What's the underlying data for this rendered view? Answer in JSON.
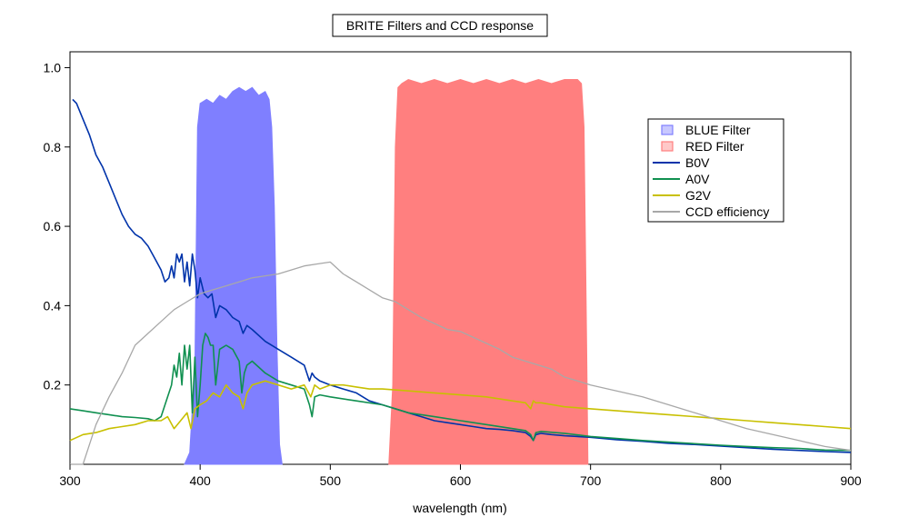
{
  "chart_data": {
    "type": "line",
    "title": "BRITE Filters and CCD response",
    "xlabel": "wavelength (nm)",
    "ylabel": "",
    "xlim": [
      300,
      900
    ],
    "ylim": [
      0.0,
      1.04
    ],
    "x_ticks": [
      300,
      400,
      500,
      600,
      700,
      800,
      900
    ],
    "y_ticks": [
      0.2,
      0.4,
      0.6,
      0.8,
      1.0
    ],
    "x_tick_labels": [
      "300",
      "400",
      "500",
      "600",
      "700",
      "800",
      "900"
    ],
    "y_tick_labels": [
      "0.2",
      "0.4",
      "0.6",
      "0.8",
      "1.0"
    ],
    "legend_position": "top-right",
    "grid": false,
    "legend": [
      {
        "label": "BLUE Filter",
        "kind": "box",
        "color": "#7f7fff"
      },
      {
        "label": "RED Filter",
        "kind": "box",
        "color": "#ff7f7f"
      },
      {
        "label": "B0V",
        "kind": "line",
        "color": "#0033aa"
      },
      {
        "label": "A0V",
        "kind": "line",
        "color": "#109050"
      },
      {
        "label": "G2V",
        "kind": "line",
        "color": "#c8c000"
      },
      {
        "label": "CCD efficiency",
        "kind": "line",
        "color": "#a8a8a8"
      }
    ],
    "filters": [
      {
        "name": "BLUE Filter",
        "color": "#7f7fff",
        "x": [
          388,
          392,
          396,
          398,
          400,
          405,
          410,
          415,
          420,
          425,
          430,
          435,
          440,
          445,
          450,
          453,
          455,
          457,
          459,
          461,
          463
        ],
        "y": [
          0.0,
          0.03,
          0.25,
          0.85,
          0.91,
          0.92,
          0.91,
          0.93,
          0.92,
          0.94,
          0.95,
          0.94,
          0.95,
          0.93,
          0.94,
          0.92,
          0.85,
          0.65,
          0.3,
          0.05,
          0.0
        ]
      },
      {
        "name": "RED Filter",
        "color": "#ff7f7f",
        "x": [
          545,
          548,
          550,
          552,
          555,
          560,
          570,
          580,
          590,
          600,
          610,
          620,
          630,
          640,
          650,
          660,
          670,
          680,
          690,
          693,
          695,
          697,
          698
        ],
        "y": [
          0.0,
          0.2,
          0.8,
          0.95,
          0.96,
          0.97,
          0.96,
          0.97,
          0.96,
          0.97,
          0.96,
          0.97,
          0.96,
          0.97,
          0.96,
          0.97,
          0.96,
          0.97,
          0.97,
          0.96,
          0.85,
          0.3,
          0.0
        ]
      }
    ],
    "series": [
      {
        "name": "B0V",
        "color": "#0033aa",
        "x": [
          302,
          305,
          310,
          315,
          320,
          325,
          330,
          335,
          340,
          345,
          350,
          355,
          360,
          365,
          370,
          373,
          376,
          378,
          380,
          382,
          384,
          386,
          388,
          390,
          392,
          394,
          396,
          398,
          400,
          403,
          406,
          409,
          412,
          415,
          420,
          425,
          430,
          433,
          436,
          440,
          450,
          460,
          470,
          480,
          484,
          486,
          488,
          492,
          500,
          510,
          520,
          530,
          540,
          550,
          560,
          570,
          580,
          590,
          600,
          610,
          620,
          630,
          640,
          650,
          654,
          656,
          658,
          662,
          670,
          680,
          700,
          720,
          740,
          760,
          780,
          800,
          820,
          840,
          860,
          880,
          900
        ],
        "y": [
          0.92,
          0.91,
          0.87,
          0.83,
          0.78,
          0.75,
          0.71,
          0.67,
          0.63,
          0.6,
          0.58,
          0.57,
          0.55,
          0.52,
          0.49,
          0.46,
          0.47,
          0.5,
          0.47,
          0.53,
          0.51,
          0.53,
          0.46,
          0.51,
          0.45,
          0.53,
          0.49,
          0.42,
          0.47,
          0.43,
          0.42,
          0.43,
          0.37,
          0.4,
          0.39,
          0.37,
          0.36,
          0.33,
          0.35,
          0.34,
          0.31,
          0.29,
          0.27,
          0.25,
          0.21,
          0.23,
          0.22,
          0.21,
          0.2,
          0.19,
          0.18,
          0.16,
          0.15,
          0.14,
          0.13,
          0.12,
          0.11,
          0.105,
          0.1,
          0.095,
          0.09,
          0.088,
          0.085,
          0.08,
          0.07,
          0.06,
          0.075,
          0.078,
          0.075,
          0.072,
          0.068,
          0.062,
          0.058,
          0.053,
          0.05,
          0.046,
          0.042,
          0.038,
          0.035,
          0.032,
          0.03
        ]
      },
      {
        "name": "A0V",
        "color": "#109050",
        "x": [
          300,
          310,
          320,
          330,
          340,
          350,
          360,
          365,
          370,
          375,
          378,
          380,
          382,
          384,
          386,
          388,
          390,
          392,
          394,
          396,
          398,
          400,
          402,
          404,
          406,
          408,
          410,
          412,
          415,
          420,
          425,
          430,
          432,
          434,
          436,
          440,
          450,
          460,
          470,
          480,
          484,
          486,
          488,
          492,
          500,
          520,
          540,
          560,
          580,
          600,
          620,
          640,
          650,
          654,
          656,
          658,
          662,
          680,
          700,
          720,
          740,
          760,
          780,
          800,
          820,
          840,
          860,
          880,
          900
        ],
        "y": [
          0.14,
          0.135,
          0.13,
          0.125,
          0.12,
          0.118,
          0.115,
          0.11,
          0.12,
          0.17,
          0.2,
          0.25,
          0.22,
          0.28,
          0.2,
          0.3,
          0.24,
          0.3,
          0.13,
          0.27,
          0.12,
          0.2,
          0.3,
          0.33,
          0.32,
          0.3,
          0.3,
          0.2,
          0.29,
          0.3,
          0.29,
          0.26,
          0.18,
          0.23,
          0.25,
          0.26,
          0.23,
          0.21,
          0.2,
          0.19,
          0.15,
          0.12,
          0.17,
          0.175,
          0.17,
          0.16,
          0.15,
          0.13,
          0.12,
          0.11,
          0.1,
          0.09,
          0.085,
          0.075,
          0.06,
          0.08,
          0.083,
          0.078,
          0.07,
          0.065,
          0.06,
          0.056,
          0.052,
          0.048,
          0.045,
          0.042,
          0.04,
          0.036,
          0.035
        ]
      },
      {
        "name": "G2V",
        "color": "#c8c000",
        "x": [
          300,
          310,
          320,
          330,
          340,
          350,
          360,
          370,
          375,
          380,
          385,
          390,
          393,
          396,
          400,
          405,
          410,
          415,
          420,
          425,
          430,
          433,
          436,
          440,
          450,
          460,
          470,
          480,
          485,
          488,
          492,
          500,
          510,
          520,
          530,
          540,
          560,
          580,
          600,
          620,
          640,
          650,
          654,
          656,
          658,
          662,
          680,
          700,
          720,
          740,
          760,
          780,
          800,
          820,
          840,
          860,
          880,
          900
        ],
        "y": [
          0.06,
          0.075,
          0.08,
          0.09,
          0.095,
          0.1,
          0.11,
          0.11,
          0.12,
          0.09,
          0.11,
          0.13,
          0.09,
          0.14,
          0.15,
          0.16,
          0.18,
          0.17,
          0.2,
          0.18,
          0.17,
          0.14,
          0.18,
          0.2,
          0.21,
          0.2,
          0.19,
          0.2,
          0.17,
          0.2,
          0.19,
          0.2,
          0.2,
          0.195,
          0.19,
          0.19,
          0.185,
          0.18,
          0.175,
          0.17,
          0.16,
          0.155,
          0.14,
          0.16,
          0.155,
          0.155,
          0.145,
          0.14,
          0.135,
          0.13,
          0.125,
          0.12,
          0.115,
          0.11,
          0.105,
          0.1,
          0.095,
          0.09
        ]
      },
      {
        "name": "CCD efficiency",
        "color": "#a8a8a8",
        "x": [
          300,
          310,
          320,
          330,
          340,
          350,
          360,
          370,
          380,
          390,
          400,
          410,
          420,
          430,
          440,
          450,
          460,
          470,
          480,
          490,
          500,
          510,
          520,
          530,
          540,
          550,
          560,
          570,
          580,
          590,
          600,
          610,
          620,
          630,
          640,
          650,
          660,
          670,
          680,
          690,
          700,
          720,
          740,
          760,
          780,
          800,
          820,
          840,
          860,
          880,
          900
        ],
        "y": [
          0.0,
          0.0,
          0.1,
          0.17,
          0.23,
          0.3,
          0.33,
          0.36,
          0.39,
          0.41,
          0.43,
          0.44,
          0.45,
          0.46,
          0.47,
          0.475,
          0.48,
          0.49,
          0.5,
          0.505,
          0.51,
          0.48,
          0.46,
          0.44,
          0.42,
          0.41,
          0.39,
          0.37,
          0.355,
          0.34,
          0.335,
          0.32,
          0.305,
          0.29,
          0.27,
          0.26,
          0.25,
          0.24,
          0.22,
          0.21,
          0.2,
          0.185,
          0.17,
          0.15,
          0.13,
          0.11,
          0.09,
          0.075,
          0.06,
          0.045,
          0.035
        ]
      }
    ]
  }
}
